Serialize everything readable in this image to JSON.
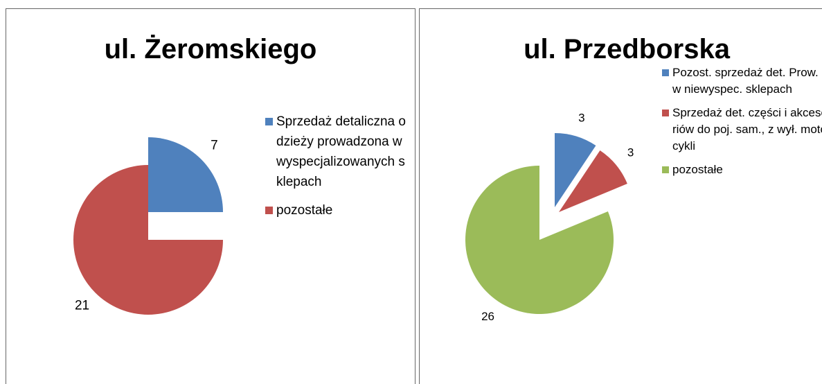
{
  "chart_data": [
    {
      "type": "pie",
      "title": "ul. Żeromskiego",
      "categories": [
        "Sprzedaż detaliczna odzieży prowadzona w wyspecjalizowanych sklepach",
        "pozostałe"
      ],
      "values": [
        7,
        21
      ],
      "colors": [
        "#4f81bd",
        "#c0504d"
      ],
      "legend": "right"
    },
    {
      "type": "pie",
      "title": "ul. Przedborska",
      "categories": [
        "Pozost. sprzedaż det. Prow. w niewyspec. sklepach",
        "Sprzedaż det. części i akcesoriów do poj. sam., z wył. motocykli",
        "pozostałe"
      ],
      "values": [
        3,
        3,
        26
      ],
      "colors": [
        "#4f81bd",
        "#c0504d",
        "#9bbb59"
      ],
      "legend": "right"
    }
  ]
}
